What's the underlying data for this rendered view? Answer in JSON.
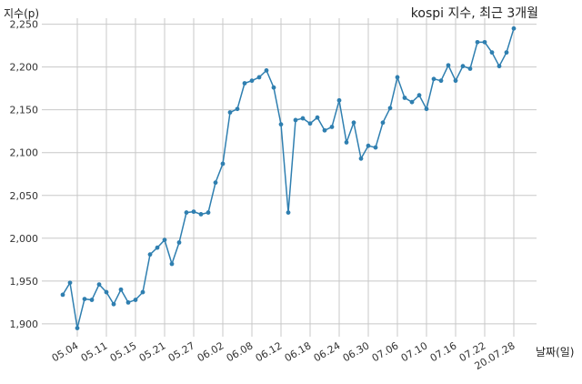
{
  "chart_data": {
    "type": "line",
    "title": "kospi 지수, 최근 3개월",
    "ylabel": "지수(p)",
    "xlabel": "날짜(일)",
    "ylim": [
      1885,
      2257
    ],
    "yticks": [
      1900,
      1950,
      2000,
      2050,
      2100,
      2150,
      2200,
      2250
    ],
    "ytick_labels": [
      "1,900",
      "1,950",
      "2,000",
      "2,050",
      "2,100",
      "2,150",
      "2,200",
      "2,250"
    ],
    "xtick_indices": [
      2,
      6,
      10,
      14,
      18,
      22,
      26,
      30,
      34,
      38,
      42,
      46,
      50,
      54,
      58,
      62
    ],
    "xtick_labels": [
      "05.04",
      "05.11",
      "05.15",
      "05.21",
      "05.27",
      "06.02",
      "06.08",
      "06.12",
      "06.18",
      "06.24",
      "06.30",
      "07.06",
      "07.10",
      "07.16",
      "07.22",
      "20.07.28"
    ],
    "grid": true,
    "line_color": "#2f7fb0",
    "series": [
      {
        "values": [
          1934,
          1948,
          1895,
          1929,
          1928,
          1946,
          1937,
          1923,
          1940,
          1925,
          1928,
          1937,
          1981,
          1989,
          1998,
          1970,
          1995,
          2030,
          2031,
          2028,
          2030,
          2065,
          2087,
          2147,
          2151,
          2181,
          2184,
          2188,
          2196,
          2176,
          2133,
          2030,
          2138,
          2140,
          2134,
          2141,
          2126,
          2130,
          2161,
          2112,
          2135,
          2093,
          2108,
          2106,
          2135,
          2152,
          2188,
          2164,
          2159,
          2167,
          2151,
          2186,
          2184,
          2202,
          2184,
          2201,
          2198,
          2229,
          2229,
          2217,
          2201,
          2217,
          2245
        ]
      }
    ]
  }
}
